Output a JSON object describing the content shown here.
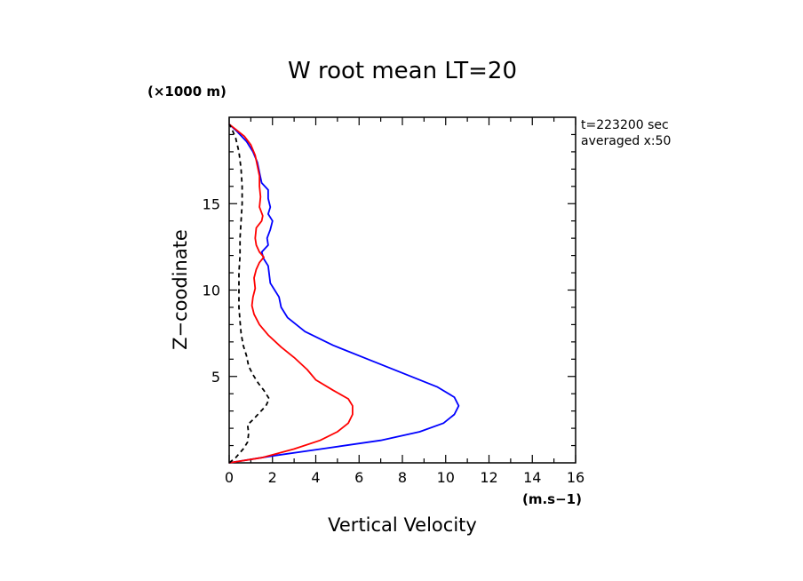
{
  "chart_data": {
    "type": "line",
    "title": "W root mean LT=20",
    "xlabel": "Vertical Velocity",
    "ylabel": "Z−coodinate",
    "x_unit": "(m.s−1)",
    "y_unit": "(×1000 m)",
    "annotations": [
      "t=223200 sec",
      "averaged  x:50"
    ],
    "xlim": [
      0,
      16
    ],
    "ylim": [
      0,
      20
    ],
    "xticks": [
      0,
      2,
      4,
      6,
      8,
      10,
      12,
      14,
      16
    ],
    "yticks": [
      5,
      10,
      15
    ],
    "grid": false,
    "series": [
      {
        "color": "#0000ff",
        "dash": "solid",
        "points": [
          [
            0,
            0
          ],
          [
            2,
            0.4
          ],
          [
            4.5,
            0.85
          ],
          [
            7,
            1.3
          ],
          [
            8.8,
            1.8
          ],
          [
            9.9,
            2.3
          ],
          [
            10.4,
            2.8
          ],
          [
            10.6,
            3.3
          ],
          [
            10.4,
            3.8
          ],
          [
            9.6,
            4.4
          ],
          [
            8.2,
            5.1
          ],
          [
            6.4,
            6.0
          ],
          [
            4.8,
            6.8
          ],
          [
            3.5,
            7.6
          ],
          [
            2.7,
            8.4
          ],
          [
            2.4,
            9.0
          ],
          [
            2.3,
            9.6
          ],
          [
            2.1,
            10.0
          ],
          [
            1.9,
            10.4
          ],
          [
            1.85,
            10.9
          ],
          [
            1.8,
            11.4
          ],
          [
            1.6,
            11.8
          ],
          [
            1.5,
            12.2
          ],
          [
            1.8,
            12.6
          ],
          [
            1.75,
            13.0
          ],
          [
            1.9,
            13.5
          ],
          [
            2.0,
            14.0
          ],
          [
            1.8,
            14.4
          ],
          [
            1.9,
            14.8
          ],
          [
            1.8,
            15.3
          ],
          [
            1.8,
            15.8
          ],
          [
            1.5,
            16.2
          ],
          [
            1.4,
            16.8
          ],
          [
            1.3,
            17.4
          ],
          [
            1.1,
            18.0
          ],
          [
            0.8,
            18.6
          ],
          [
            0.35,
            19.2
          ],
          [
            0,
            19.6
          ]
        ]
      },
      {
        "color": "#ff0000",
        "dash": "solid",
        "points": [
          [
            0,
            0
          ],
          [
            1.5,
            0.3
          ],
          [
            3,
            0.8
          ],
          [
            4.2,
            1.3
          ],
          [
            5.0,
            1.8
          ],
          [
            5.5,
            2.3
          ],
          [
            5.7,
            2.8
          ],
          [
            5.7,
            3.3
          ],
          [
            5.5,
            3.7
          ],
          [
            4.8,
            4.2
          ],
          [
            4.0,
            4.8
          ],
          [
            3.6,
            5.4
          ],
          [
            3.0,
            6.1
          ],
          [
            2.4,
            6.7
          ],
          [
            1.8,
            7.4
          ],
          [
            1.4,
            8.0
          ],
          [
            1.15,
            8.6
          ],
          [
            1.05,
            9.1
          ],
          [
            1.1,
            9.6
          ],
          [
            1.2,
            10.1
          ],
          [
            1.15,
            10.7
          ],
          [
            1.25,
            11.2
          ],
          [
            1.4,
            11.6
          ],
          [
            1.6,
            11.9
          ],
          [
            1.4,
            12.2
          ],
          [
            1.25,
            12.6
          ],
          [
            1.2,
            13.0
          ],
          [
            1.25,
            13.6
          ],
          [
            1.5,
            14.0
          ],
          [
            1.55,
            14.3
          ],
          [
            1.4,
            14.8
          ],
          [
            1.45,
            15.4
          ],
          [
            1.4,
            16.0
          ],
          [
            1.4,
            16.6
          ],
          [
            1.3,
            17.2
          ],
          [
            1.2,
            17.8
          ],
          [
            1.0,
            18.4
          ],
          [
            0.7,
            18.9
          ],
          [
            0.3,
            19.3
          ],
          [
            0,
            19.6
          ]
        ]
      },
      {
        "color": "#000000",
        "dash": "dashed",
        "points": [
          [
            0,
            0
          ],
          [
            0.3,
            0.3
          ],
          [
            0.65,
            0.8
          ],
          [
            0.85,
            1.2
          ],
          [
            0.9,
            1.7
          ],
          [
            0.85,
            2.2
          ],
          [
            1.1,
            2.5
          ],
          [
            1.4,
            2.9
          ],
          [
            1.7,
            3.3
          ],
          [
            1.85,
            3.7
          ],
          [
            1.6,
            4.2
          ],
          [
            1.35,
            4.6
          ],
          [
            1.1,
            5.1
          ],
          [
            0.9,
            5.6
          ],
          [
            0.8,
            6.2
          ],
          [
            0.65,
            6.8
          ],
          [
            0.55,
            7.5
          ],
          [
            0.5,
            8.2
          ],
          [
            0.45,
            9.0
          ],
          [
            0.45,
            10.0
          ],
          [
            0.45,
            11.0
          ],
          [
            0.5,
            12.0
          ],
          [
            0.5,
            13.0
          ],
          [
            0.55,
            14.0
          ],
          [
            0.6,
            15.0
          ],
          [
            0.6,
            16.0
          ],
          [
            0.55,
            17.0
          ],
          [
            0.45,
            18.0
          ],
          [
            0.3,
            18.8
          ],
          [
            0.1,
            19.4
          ],
          [
            0,
            19.6
          ]
        ]
      }
    ]
  }
}
